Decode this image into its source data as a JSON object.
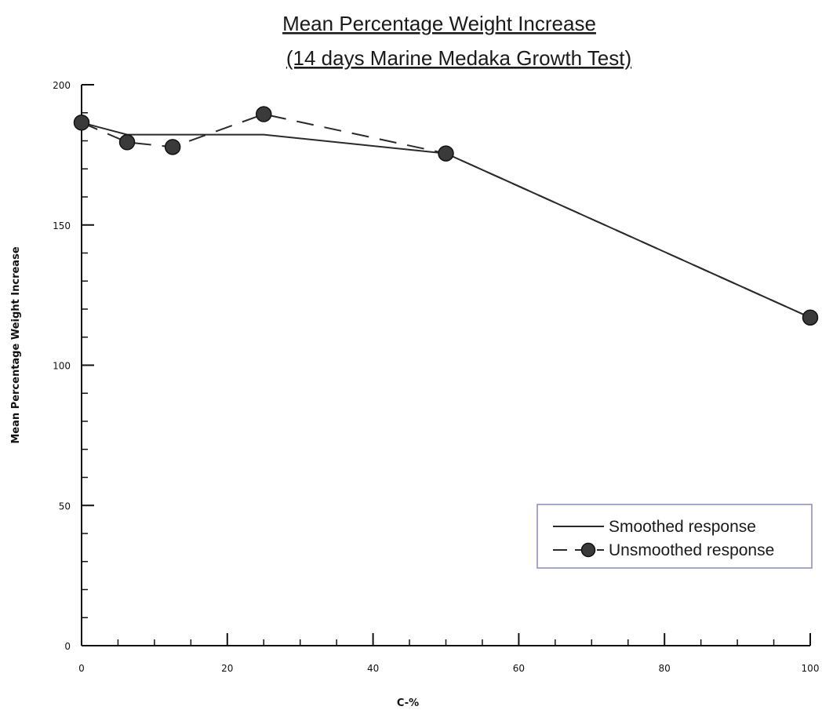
{
  "chart_data": {
    "type": "line",
    "title": "Mean Percentage Weight Increase",
    "subtitle": "(14 days Marine Medaka Growth Test)",
    "xlabel": "C-%",
    "ylabel": "Mean Percentage Weight Increase",
    "xlim": [
      0,
      100
    ],
    "ylim": [
      0,
      200
    ],
    "xticks": [
      0,
      20,
      40,
      60,
      80,
      100
    ],
    "yticks": [
      0,
      50,
      100,
      150,
      200
    ],
    "grid": false,
    "legend_position": "bottom-right",
    "series": [
      {
        "name": "Smoothed response",
        "style": "solid",
        "marker": "none",
        "x": [
          0,
          6.25,
          25,
          50,
          100
        ],
        "y": [
          186.5,
          182.2,
          182.2,
          175.5,
          117
        ]
      },
      {
        "name": "Unsmoothed response",
        "style": "dashed",
        "marker": "circle",
        "x": [
          0,
          6.25,
          12.5,
          25,
          50,
          100
        ],
        "y": [
          186.5,
          179.5,
          177.8,
          189.5,
          175.5,
          117
        ]
      }
    ],
    "colors": {
      "line": "#2a2a2a",
      "marker": "#3a3a3a",
      "axis": "#111111",
      "legend_border": "#8a8ab8"
    }
  }
}
